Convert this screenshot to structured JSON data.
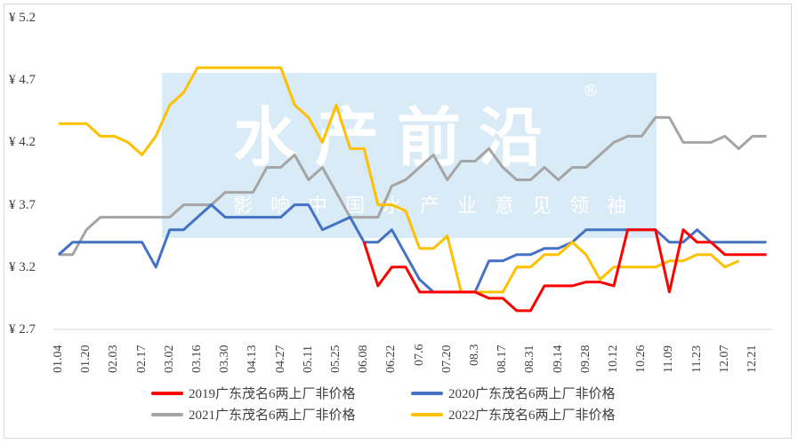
{
  "watermark": {
    "title": "水产前沿",
    "registered": "®",
    "subtitle": "影响中国水产业意见领袖"
  },
  "chart_data": {
    "type": "line",
    "title": "",
    "xlabel": "",
    "ylabel": "",
    "ylim": [
      2.7,
      5.2
    ],
    "y_ticks": [
      "¥ 5.2",
      "¥ 4.7",
      "¥ 4.2",
      "¥ 3.7",
      "¥ 3.2",
      "¥ 2.7"
    ],
    "y_tick_values": [
      5.2,
      4.7,
      4.2,
      3.7,
      3.2,
      2.7
    ],
    "x_tick_labels": [
      "01.04",
      "01.20",
      "02.03",
      "02.17",
      "03.02",
      "03.16",
      "03.30",
      "04.13",
      "04.27",
      "05.11",
      "05.25",
      "06.08",
      "06.22",
      "07.6",
      "07.20",
      "08.3",
      "08.17",
      "08.31",
      "09.14",
      "09.28",
      "10.12",
      "10.26",
      "11.09",
      "11.23",
      "12.07",
      "12.21"
    ],
    "n_points": 52,
    "grid": false,
    "legend_position": "bottom",
    "series": [
      {
        "name": "2019广东茂名6两上厂非价格",
        "color": "#ff0000",
        "values": [
          null,
          null,
          null,
          null,
          null,
          null,
          null,
          null,
          null,
          null,
          null,
          null,
          null,
          null,
          null,
          null,
          null,
          null,
          null,
          null,
          null,
          null,
          3.4,
          3.05,
          3.2,
          3.2,
          3.0,
          3.0,
          3.0,
          3.0,
          3.0,
          2.95,
          2.95,
          2.85,
          2.85,
          3.05,
          3.05,
          3.05,
          3.08,
          3.08,
          3.05,
          3.5,
          3.5,
          3.5,
          3.0,
          3.5,
          3.4,
          3.4,
          3.3,
          3.3,
          3.3,
          3.3
        ]
      },
      {
        "name": "2020广东茂名6两上厂非价格",
        "color": "#4472c4",
        "values": [
          3.3,
          3.4,
          3.4,
          3.4,
          3.4,
          3.4,
          3.4,
          3.2,
          3.5,
          3.5,
          3.6,
          3.7,
          3.6,
          3.6,
          3.6,
          3.6,
          3.6,
          3.7,
          3.7,
          3.5,
          3.55,
          3.6,
          3.4,
          3.4,
          3.5,
          3.3,
          3.1,
          3.0,
          3.0,
          3.0,
          3.0,
          3.25,
          3.25,
          3.3,
          3.3,
          3.35,
          3.35,
          3.4,
          3.5,
          3.5,
          3.5,
          3.5,
          3.5,
          3.5,
          3.4,
          3.4,
          3.5,
          3.4,
          3.4,
          3.4,
          3.4,
          3.4
        ]
      },
      {
        "name": "2021广东茂名6两上厂非价格",
        "color": "#a5a5a5",
        "values": [
          3.3,
          3.3,
          3.5,
          3.6,
          3.6,
          3.6,
          3.6,
          3.6,
          3.6,
          3.7,
          3.7,
          3.7,
          3.8,
          3.8,
          3.8,
          4.0,
          4.0,
          4.1,
          3.9,
          4.0,
          3.8,
          3.6,
          3.6,
          3.6,
          3.85,
          3.9,
          4.0,
          4.1,
          3.9,
          4.05,
          4.05,
          4.15,
          4.0,
          3.9,
          3.9,
          4.0,
          3.9,
          4.0,
          4.0,
          4.1,
          4.2,
          4.25,
          4.25,
          4.4,
          4.4,
          4.2,
          4.2,
          4.2,
          4.25,
          4.15,
          4.25,
          4.25
        ]
      },
      {
        "name": "2022广东茂名6两上厂非价格",
        "color": "#ffc000",
        "values": [
          4.35,
          4.35,
          4.35,
          4.25,
          4.25,
          4.2,
          4.1,
          4.25,
          4.5,
          4.6,
          4.8,
          4.8,
          4.8,
          4.8,
          4.8,
          4.8,
          4.8,
          4.5,
          4.4,
          4.2,
          4.5,
          4.15,
          4.15,
          3.7,
          3.7,
          3.65,
          3.35,
          3.35,
          3.45,
          3.0,
          3.0,
          3.0,
          3.0,
          3.2,
          3.2,
          3.3,
          3.3,
          3.4,
          3.3,
          3.1,
          3.2,
          3.2,
          3.2,
          3.2,
          3.25,
          3.25,
          3.3,
          3.3,
          3.2,
          3.25,
          null,
          null
        ]
      }
    ]
  }
}
